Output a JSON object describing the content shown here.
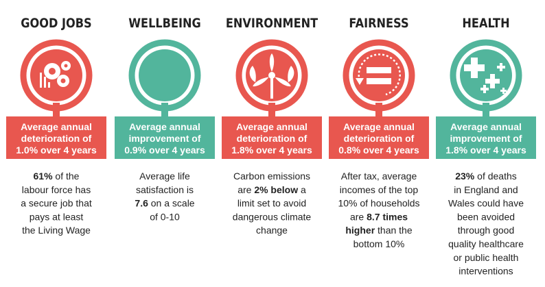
{
  "columns": [
    {
      "title": "GOOD JOBS",
      "color": "#e8574f",
      "badge": [
        "Average annual",
        "deterioration of",
        "1.0% over 4 years"
      ],
      "description": [
        [
          {
            "text": "61%",
            "bold": true
          },
          {
            "text": " of the"
          }
        ],
        [
          {
            "text": "labour force has"
          }
        ],
        [
          {
            "text": "a secure job that"
          }
        ],
        [
          {
            "text": "pays at least"
          }
        ],
        [
          {
            "text": "the Living Wage"
          }
        ]
      ]
    },
    {
      "title": "WELLBEING",
      "color": "#52b59c",
      "badge": [
        "Average annual",
        "improvement of",
        "0.9% over 4 years"
      ],
      "description": [
        [
          {
            "text": "Average life"
          }
        ],
        [
          {
            "text": "satisfaction is"
          }
        ],
        [
          {
            "text": "7.6",
            "bold": true
          },
          {
            "text": " on a scale"
          }
        ],
        [
          {
            "text": "of 0-10"
          }
        ]
      ]
    },
    {
      "title": "ENVIRONMENT",
      "color": "#e8574f",
      "badge": [
        "Average annual",
        "deterioration of",
        "1.8% over 4 years"
      ],
      "description": [
        [
          {
            "text": "Carbon emissions"
          }
        ],
        [
          {
            "text": "are "
          },
          {
            "text": "2% below",
            "bold": true
          },
          {
            "text": " a"
          }
        ],
        [
          {
            "text": "limit set to avoid"
          }
        ],
        [
          {
            "text": "dangerous climate"
          }
        ],
        [
          {
            "text": "change"
          }
        ]
      ]
    },
    {
      "title": "FAIRNESS",
      "color": "#e8574f",
      "badge": [
        "Average annual",
        "deterioration of",
        "0.8% over 4 years"
      ],
      "description": [
        [
          {
            "text": "After tax, average"
          }
        ],
        [
          {
            "text": "incomes of the top"
          }
        ],
        [
          {
            "text": "10% of households"
          }
        ],
        [
          {
            "text": "are "
          },
          {
            "text": "8.7 times",
            "bold": true
          }
        ],
        [
          {
            "text": "higher",
            "bold": true
          },
          {
            "text": " than the"
          }
        ],
        [
          {
            "text": "bottom 10%"
          }
        ]
      ]
    },
    {
      "title": "HEALTH",
      "color": "#52b59c",
      "badge": [
        "Average annual",
        "improvement of",
        "1.8% over 4 years"
      ],
      "description": [
        [
          {
            "text": "23%",
            "bold": true
          },
          {
            "text": " of deaths"
          }
        ],
        [
          {
            "text": "in England and"
          }
        ],
        [
          {
            "text": "Wales could have"
          }
        ],
        [
          {
            "text": "been avoided"
          }
        ],
        [
          {
            "text": "through good"
          }
        ],
        [
          {
            "text": "quality healthcare"
          }
        ],
        [
          {
            "text": "or public health"
          }
        ],
        [
          {
            "text": "interventions"
          }
        ]
      ]
    }
  ]
}
